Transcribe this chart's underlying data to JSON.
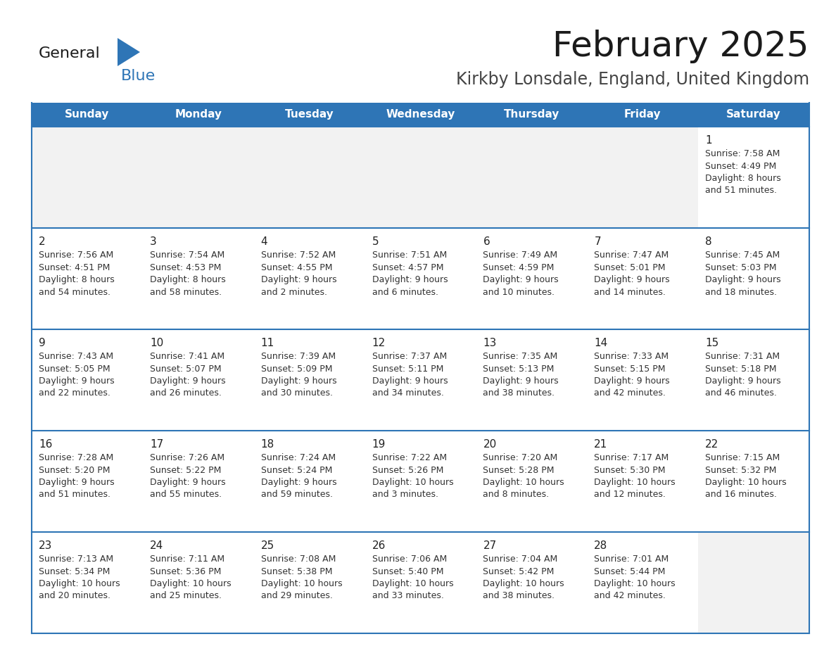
{
  "title": "February 2025",
  "subtitle": "Kirkby Lonsdale, England, United Kingdom",
  "header_color": "#2E75B6",
  "header_text_color": "#FFFFFF",
  "day_names": [
    "Sunday",
    "Monday",
    "Tuesday",
    "Wednesday",
    "Thursday",
    "Friday",
    "Saturday"
  ],
  "background_color": "#FFFFFF",
  "cell_bg": "#FFFFFF",
  "row_num_bg": "#F2F2F2",
  "separator_color": "#2E75B6",
  "text_color": "#333333",
  "day_num_color": "#222222",
  "days": [
    {
      "day": 1,
      "col": 6,
      "row": 0,
      "sunrise": "7:58 AM",
      "sunset": "4:49 PM",
      "daylight": "8 hours and 51 minutes."
    },
    {
      "day": 2,
      "col": 0,
      "row": 1,
      "sunrise": "7:56 AM",
      "sunset": "4:51 PM",
      "daylight": "8 hours and 54 minutes."
    },
    {
      "day": 3,
      "col": 1,
      "row": 1,
      "sunrise": "7:54 AM",
      "sunset": "4:53 PM",
      "daylight": "8 hours and 58 minutes."
    },
    {
      "day": 4,
      "col": 2,
      "row": 1,
      "sunrise": "7:52 AM",
      "sunset": "4:55 PM",
      "daylight": "9 hours and 2 minutes."
    },
    {
      "day": 5,
      "col": 3,
      "row": 1,
      "sunrise": "7:51 AM",
      "sunset": "4:57 PM",
      "daylight": "9 hours and 6 minutes."
    },
    {
      "day": 6,
      "col": 4,
      "row": 1,
      "sunrise": "7:49 AM",
      "sunset": "4:59 PM",
      "daylight": "9 hours and 10 minutes."
    },
    {
      "day": 7,
      "col": 5,
      "row": 1,
      "sunrise": "7:47 AM",
      "sunset": "5:01 PM",
      "daylight": "9 hours and 14 minutes."
    },
    {
      "day": 8,
      "col": 6,
      "row": 1,
      "sunrise": "7:45 AM",
      "sunset": "5:03 PM",
      "daylight": "9 hours and 18 minutes."
    },
    {
      "day": 9,
      "col": 0,
      "row": 2,
      "sunrise": "7:43 AM",
      "sunset": "5:05 PM",
      "daylight": "9 hours and 22 minutes."
    },
    {
      "day": 10,
      "col": 1,
      "row": 2,
      "sunrise": "7:41 AM",
      "sunset": "5:07 PM",
      "daylight": "9 hours and 26 minutes."
    },
    {
      "day": 11,
      "col": 2,
      "row": 2,
      "sunrise": "7:39 AM",
      "sunset": "5:09 PM",
      "daylight": "9 hours and 30 minutes."
    },
    {
      "day": 12,
      "col": 3,
      "row": 2,
      "sunrise": "7:37 AM",
      "sunset": "5:11 PM",
      "daylight": "9 hours and 34 minutes."
    },
    {
      "day": 13,
      "col": 4,
      "row": 2,
      "sunrise": "7:35 AM",
      "sunset": "5:13 PM",
      "daylight": "9 hours and 38 minutes."
    },
    {
      "day": 14,
      "col": 5,
      "row": 2,
      "sunrise": "7:33 AM",
      "sunset": "5:15 PM",
      "daylight": "9 hours and 42 minutes."
    },
    {
      "day": 15,
      "col": 6,
      "row": 2,
      "sunrise": "7:31 AM",
      "sunset": "5:18 PM",
      "daylight": "9 hours and 46 minutes."
    },
    {
      "day": 16,
      "col": 0,
      "row": 3,
      "sunrise": "7:28 AM",
      "sunset": "5:20 PM",
      "daylight": "9 hours and 51 minutes."
    },
    {
      "day": 17,
      "col": 1,
      "row": 3,
      "sunrise": "7:26 AM",
      "sunset": "5:22 PM",
      "daylight": "9 hours and 55 minutes."
    },
    {
      "day": 18,
      "col": 2,
      "row": 3,
      "sunrise": "7:24 AM",
      "sunset": "5:24 PM",
      "daylight": "9 hours and 59 minutes."
    },
    {
      "day": 19,
      "col": 3,
      "row": 3,
      "sunrise": "7:22 AM",
      "sunset": "5:26 PM",
      "daylight": "10 hours and 3 minutes."
    },
    {
      "day": 20,
      "col": 4,
      "row": 3,
      "sunrise": "7:20 AM",
      "sunset": "5:28 PM",
      "daylight": "10 hours and 8 minutes."
    },
    {
      "day": 21,
      "col": 5,
      "row": 3,
      "sunrise": "7:17 AM",
      "sunset": "5:30 PM",
      "daylight": "10 hours and 12 minutes."
    },
    {
      "day": 22,
      "col": 6,
      "row": 3,
      "sunrise": "7:15 AM",
      "sunset": "5:32 PM",
      "daylight": "10 hours and 16 minutes."
    },
    {
      "day": 23,
      "col": 0,
      "row": 4,
      "sunrise": "7:13 AM",
      "sunset": "5:34 PM",
      "daylight": "10 hours and 20 minutes."
    },
    {
      "day": 24,
      "col": 1,
      "row": 4,
      "sunrise": "7:11 AM",
      "sunset": "5:36 PM",
      "daylight": "10 hours and 25 minutes."
    },
    {
      "day": 25,
      "col": 2,
      "row": 4,
      "sunrise": "7:08 AM",
      "sunset": "5:38 PM",
      "daylight": "10 hours and 29 minutes."
    },
    {
      "day": 26,
      "col": 3,
      "row": 4,
      "sunrise": "7:06 AM",
      "sunset": "5:40 PM",
      "daylight": "10 hours and 33 minutes."
    },
    {
      "day": 27,
      "col": 4,
      "row": 4,
      "sunrise": "7:04 AM",
      "sunset": "5:42 PM",
      "daylight": "10 hours and 38 minutes."
    },
    {
      "day": 28,
      "col": 5,
      "row": 4,
      "sunrise": "7:01 AM",
      "sunset": "5:44 PM",
      "daylight": "10 hours and 42 minutes."
    }
  ],
  "num_rows": 5,
  "num_cols": 7,
  "title_fontsize": 36,
  "subtitle_fontsize": 17,
  "dayname_fontsize": 11,
  "daynum_fontsize": 11,
  "cell_text_fontsize": 9
}
